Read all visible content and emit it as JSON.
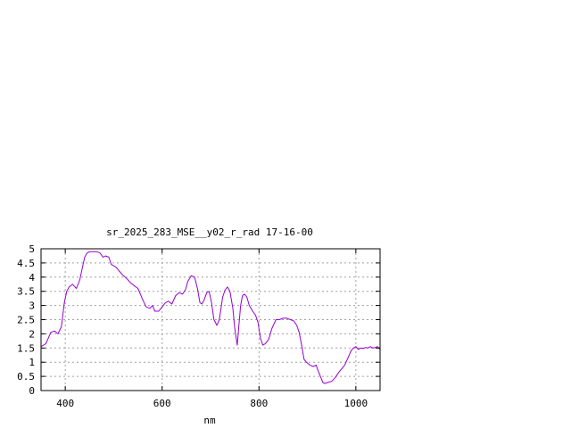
{
  "chart_data": {
    "type": "line",
    "title": "sr_2025_283_MSE__y02_r_rad 17-16-00",
    "xlabel": "nm",
    "ylabel": "",
    "xlim": [
      350,
      1050
    ],
    "ylim": [
      0,
      5
    ],
    "xticks": [
      400,
      600,
      800,
      1000
    ],
    "xtick_labels": [
      "400",
      "600",
      "800",
      "1000"
    ],
    "yticks": [
      0,
      0.5,
      1,
      1.5,
      2,
      2.5,
      3,
      3.5,
      4,
      4.5,
      5
    ],
    "ytick_labels": [
      "0",
      "0.5",
      "1",
      "1.5",
      "2",
      "2.5",
      "3",
      "3.5",
      "4",
      "4.5",
      "5"
    ],
    "grid": true,
    "series": [
      {
        "color": "#9400d3",
        "x": [
          350,
          360,
          370,
          378,
          385,
          392,
          398,
          403,
          408,
          415,
          423,
          430,
          435,
          440,
          445,
          450,
          457,
          465,
          472,
          478,
          483,
          490,
          495,
          500,
          505,
          512,
          520,
          527,
          535,
          542,
          550,
          560,
          567,
          575,
          580,
          585,
          593,
          600,
          607,
          613,
          620,
          628,
          635,
          642,
          648,
          653,
          660,
          667,
          673,
          678,
          682,
          687,
          692,
          697,
          702,
          707,
          713,
          718,
          725,
          730,
          735,
          740,
          746,
          750,
          755,
          758,
          762,
          766,
          770,
          775,
          780,
          787,
          793,
          798,
          803,
          808,
          813,
          820,
          827,
          835,
          842,
          850,
          857,
          865,
          872,
          878,
          883,
          888,
          893,
          898,
          905,
          912,
          918,
          922,
          928,
          932,
          937,
          943,
          950,
          957,
          965,
          970,
          977,
          985,
          990,
          995,
          1000,
          1005,
          1010,
          1015,
          1020,
          1025,
          1030,
          1035,
          1040,
          1045,
          1050
        ],
        "values": [
          1.55,
          1.65,
          2.05,
          2.1,
          2.0,
          2.25,
          3.1,
          3.5,
          3.65,
          3.75,
          3.6,
          3.9,
          4.3,
          4.7,
          4.85,
          4.9,
          4.9,
          4.9,
          4.85,
          4.7,
          4.75,
          4.7,
          4.45,
          4.4,
          4.35,
          4.2,
          4.05,
          3.95,
          3.8,
          3.7,
          3.6,
          3.2,
          2.95,
          2.9,
          3.0,
          2.8,
          2.8,
          2.95,
          3.1,
          3.15,
          3.05,
          3.35,
          3.45,
          3.4,
          3.55,
          3.85,
          4.05,
          4.0,
          3.6,
          3.1,
          3.05,
          3.2,
          3.45,
          3.5,
          3.1,
          2.5,
          2.3,
          2.5,
          3.3,
          3.55,
          3.65,
          3.5,
          2.9,
          2.2,
          1.6,
          2.2,
          3.0,
          3.35,
          3.4,
          3.3,
          3.0,
          2.8,
          2.65,
          2.4,
          1.85,
          1.6,
          1.65,
          1.8,
          2.2,
          2.5,
          2.5,
          2.55,
          2.55,
          2.5,
          2.45,
          2.3,
          2.05,
          1.6,
          1.1,
          1.0,
          0.9,
          0.85,
          0.9,
          0.7,
          0.45,
          0.28,
          0.25,
          0.3,
          0.32,
          0.45,
          0.65,
          0.75,
          0.9,
          1.2,
          1.4,
          1.5,
          1.55,
          1.45,
          1.5,
          1.48,
          1.52,
          1.5,
          1.55,
          1.5,
          1.52,
          1.55,
          1.45
        ]
      }
    ]
  }
}
